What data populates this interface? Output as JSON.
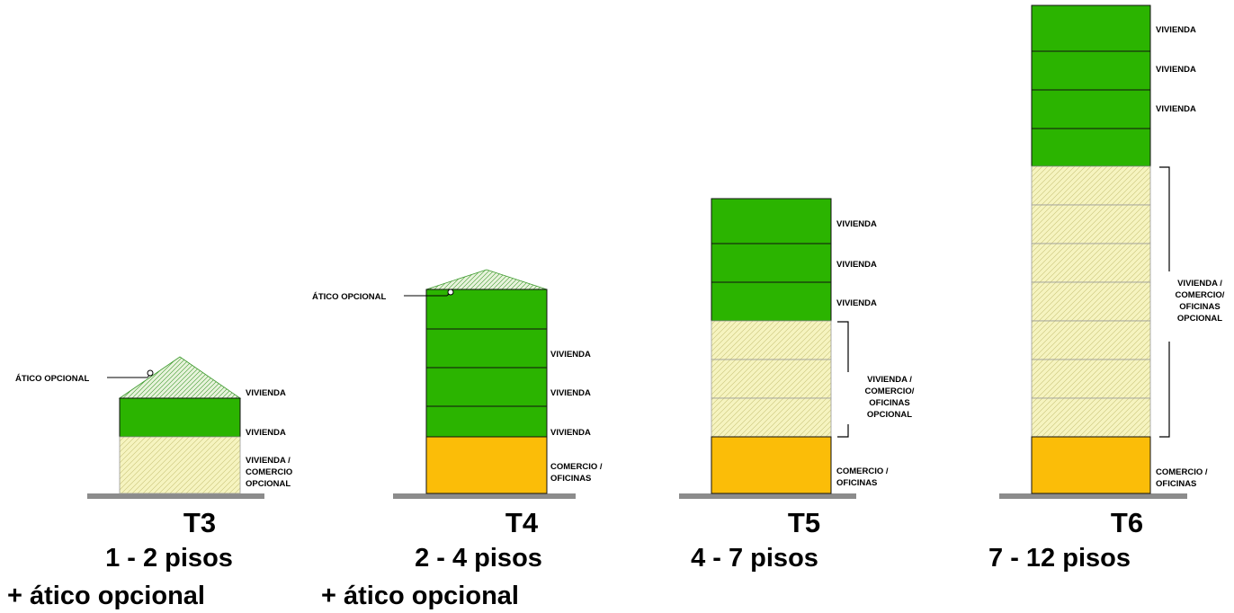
{
  "colors": {
    "vivienda": "#2bb400",
    "mixed": "#f6f4c0",
    "commercial": "#fbbd08",
    "attic": "#e8f3dc",
    "ground": "#8c8c8c"
  },
  "types": [
    {
      "id": "t3",
      "title": "T3",
      "floors_text": "1 - 2 pisos",
      "attic_text": "+ ático opcional",
      "attic_label": "ÁTICO OPCIONAL",
      "floor_labels": [
        "VIVIENDA",
        "VIVIENDA"
      ],
      "ground_label": [
        "VIVIENDA /",
        "COMERCIO",
        "OPCIONAL"
      ]
    },
    {
      "id": "t4",
      "title": "T4",
      "floors_text": "2 - 4 pisos",
      "attic_text": "+ ático opcional",
      "attic_label": "ÁTICO OPCIONAL",
      "floor_labels": [
        "VIVIENDA",
        "VIVIENDA",
        "VIVIENDA"
      ],
      "ground_label": [
        "COMERCIO /",
        "OFICINAS"
      ]
    },
    {
      "id": "t5",
      "title": "T5",
      "floors_text": "4 - 7 pisos",
      "floor_labels": [
        "VIVIENDA",
        "VIVIENDA",
        "VIVIENDA"
      ],
      "mixed_label": [
        "VIVIENDA /",
        "COMERCIO/",
        "OFICINAS",
        "OPCIONAL"
      ],
      "ground_label": [
        "COMERCIO /",
        "OFICINAS"
      ]
    },
    {
      "id": "t6",
      "title": "T6",
      "floors_text": "7 - 12 pisos",
      "floor_labels": [
        "VIVIENDA",
        "VIVIENDA",
        "VIVIENDA"
      ],
      "mixed_label": [
        "VIVIENDA /",
        "COMERCIO/",
        "OFICINAS",
        "OPCIONAL"
      ],
      "ground_label": [
        "COMERCIO /",
        "OFICINAS"
      ]
    }
  ]
}
